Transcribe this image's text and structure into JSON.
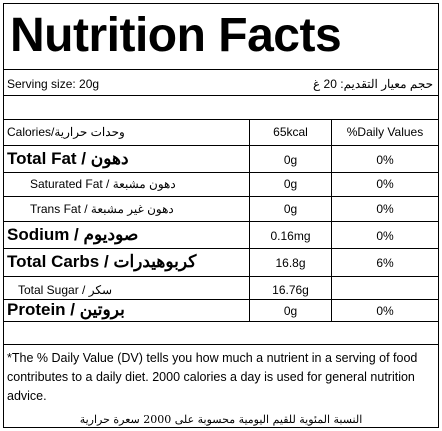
{
  "title": "Nutrition Facts",
  "serving": {
    "en": "Serving size: 20g",
    "ar": "حجم معيار التقديم: 20 غ"
  },
  "header": {
    "label": "Calories/وحدات حرارية",
    "amount": "65kcal",
    "dv": "%Daily Values"
  },
  "rows": [
    {
      "label": "Total Fat / دهون",
      "amount": "0g",
      "dv": "0%"
    },
    {
      "label": "Saturated Fat / دهون مشبعة",
      "amount": "0g",
      "dv": "0%"
    },
    {
      "label": "Trans Fat / دهون غير مشبعة",
      "amount": "0g",
      "dv": "0%"
    },
    {
      "label": "Sodium / صوديوم",
      "amount": "0.16mg",
      "dv": "0%"
    },
    {
      "label": "Total Carbs / كربوهيدرات",
      "amount": "16.8g",
      "dv": "6%"
    },
    {
      "label": "Total Sugar / سكر",
      "amount": "16.76g",
      "dv": ""
    },
    {
      "label": "Protein / بروتين",
      "amount": "0g",
      "dv": "0%"
    }
  ],
  "footnote": "*The % Daily Value (DV) tells you how much a nutrient in a serving of food contributes to a daily diet. 2000 calories a day is used for general nutrition advice.",
  "footnote_ar": "النسبة المئوية للقيم اليومية محسوبة على 2000 سعرة حرارية"
}
